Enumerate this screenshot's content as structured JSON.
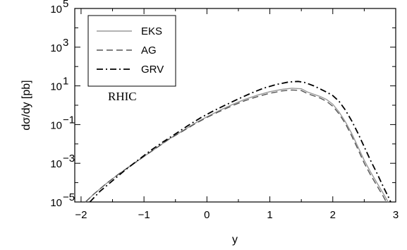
{
  "chart_data": {
    "type": "line",
    "title": "",
    "xlabel": "y",
    "ylabel": "dσ/dy [pb]",
    "xlim": [
      -2.1,
      3.0
    ],
    "ylim_log10": [
      -5,
      5
    ],
    "yscale": "log",
    "grid": false,
    "legend_position": "top-left",
    "annotation": "RHIC",
    "x_ticks": [
      {
        "value": -2,
        "label": "−2"
      },
      {
        "value": -1,
        "label": "−1"
      },
      {
        "value": 0,
        "label": "0"
      },
      {
        "value": 1,
        "label": "1"
      },
      {
        "value": 2,
        "label": "2"
      },
      {
        "value": 3,
        "label": "3"
      }
    ],
    "y_ticks": [
      {
        "exp": 5,
        "base": "10",
        "sup": "5"
      },
      {
        "exp": 3,
        "base": "10",
        "sup": "3"
      },
      {
        "exp": 1,
        "base": "10",
        "sup": "1"
      },
      {
        "exp": -1,
        "base": "10",
        "sup": "−1"
      },
      {
        "exp": -3,
        "base": "10",
        "sup": "−3"
      },
      {
        "exp": -5,
        "base": "10",
        "sup": "−5"
      }
    ],
    "series": [
      {
        "name": "EKS",
        "style": "solid",
        "color": "#9a9a9a",
        "points": [
          [
            -1.93,
            -5.0
          ],
          [
            -1.8,
            -4.6
          ],
          [
            -1.6,
            -4.05
          ],
          [
            -1.4,
            -3.55
          ],
          [
            -1.2,
            -3.1
          ],
          [
            -1.0,
            -2.65
          ],
          [
            -0.8,
            -2.2
          ],
          [
            -0.6,
            -1.75
          ],
          [
            -0.4,
            -1.35
          ],
          [
            -0.2,
            -0.95
          ],
          [
            0.0,
            -0.6
          ],
          [
            0.2,
            -0.27
          ],
          [
            0.4,
            0.03
          ],
          [
            0.6,
            0.3
          ],
          [
            0.8,
            0.52
          ],
          [
            1.0,
            0.7
          ],
          [
            1.2,
            0.82
          ],
          [
            1.35,
            0.88
          ],
          [
            1.5,
            0.85
          ],
          [
            1.6,
            0.68
          ],
          [
            1.8,
            0.45
          ],
          [
            1.9,
            0.3
          ],
          [
            2.0,
            0.05
          ],
          [
            2.1,
            -0.35
          ],
          [
            2.2,
            -0.85
          ],
          [
            2.3,
            -1.45
          ],
          [
            2.4,
            -2.15
          ],
          [
            2.5,
            -2.85
          ],
          [
            2.6,
            -3.45
          ],
          [
            2.7,
            -4.0
          ],
          [
            2.8,
            -4.55
          ],
          [
            2.88,
            -5.0
          ]
        ]
      },
      {
        "name": "AG",
        "style": "dashed",
        "color": "#555555",
        "points": [
          [
            -1.93,
            -5.0
          ],
          [
            -1.8,
            -4.6
          ],
          [
            -1.6,
            -4.05
          ],
          [
            -1.4,
            -3.55
          ],
          [
            -1.2,
            -3.1
          ],
          [
            -1.0,
            -2.65
          ],
          [
            -0.8,
            -2.2
          ],
          [
            -0.6,
            -1.75
          ],
          [
            -0.4,
            -1.37
          ],
          [
            -0.2,
            -0.98
          ],
          [
            0.0,
            -0.63
          ],
          [
            0.2,
            -0.32
          ],
          [
            0.4,
            -0.03
          ],
          [
            0.6,
            0.23
          ],
          [
            0.8,
            0.44
          ],
          [
            1.0,
            0.62
          ],
          [
            1.2,
            0.74
          ],
          [
            1.35,
            0.79
          ],
          [
            1.5,
            0.76
          ],
          [
            1.6,
            0.6
          ],
          [
            1.8,
            0.37
          ],
          [
            1.9,
            0.2
          ],
          [
            2.0,
            -0.05
          ],
          [
            2.1,
            -0.45
          ],
          [
            2.2,
            -0.95
          ],
          [
            2.3,
            -1.58
          ],
          [
            2.4,
            -2.28
          ],
          [
            2.5,
            -3.0
          ],
          [
            2.6,
            -3.6
          ],
          [
            2.7,
            -4.15
          ],
          [
            2.8,
            -4.7
          ],
          [
            2.85,
            -5.0
          ]
        ]
      },
      {
        "name": "GRV",
        "style": "dashdot",
        "color": "#000000",
        "points": [
          [
            -1.86,
            -5.0
          ],
          [
            -1.7,
            -4.45
          ],
          [
            -1.5,
            -3.9
          ],
          [
            -1.3,
            -3.35
          ],
          [
            -1.1,
            -2.85
          ],
          [
            -0.9,
            -2.35
          ],
          [
            -0.7,
            -1.9
          ],
          [
            -0.5,
            -1.48
          ],
          [
            -0.3,
            -1.05
          ],
          [
            -0.1,
            -0.65
          ],
          [
            0.1,
            -0.3
          ],
          [
            0.3,
            0.02
          ],
          [
            0.5,
            0.33
          ],
          [
            0.7,
            0.62
          ],
          [
            0.9,
            0.88
          ],
          [
            1.1,
            1.07
          ],
          [
            1.3,
            1.2
          ],
          [
            1.45,
            1.23
          ],
          [
            1.55,
            1.18
          ],
          [
            1.7,
            1.0
          ],
          [
            1.9,
            0.68
          ],
          [
            2.0,
            0.5
          ],
          [
            2.1,
            0.2
          ],
          [
            2.2,
            -0.25
          ],
          [
            2.3,
            -0.8
          ],
          [
            2.4,
            -1.45
          ],
          [
            2.5,
            -2.15
          ],
          [
            2.6,
            -2.85
          ],
          [
            2.7,
            -3.5
          ],
          [
            2.8,
            -4.2
          ],
          [
            2.9,
            -4.85
          ],
          [
            2.92,
            -5.0
          ]
        ]
      }
    ]
  }
}
